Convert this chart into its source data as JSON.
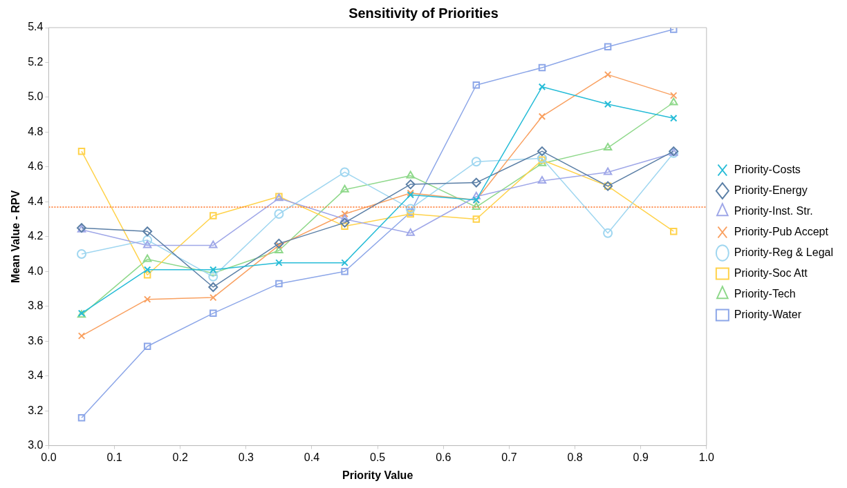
{
  "chart_data": {
    "type": "line",
    "title": "Sensitivity of Priorities",
    "xlabel": "Priority Value",
    "ylabel": "Mean Value - RPV",
    "x": [
      0.05,
      0.15,
      0.25,
      0.35,
      0.45,
      0.55,
      0.65,
      0.75,
      0.85,
      0.95
    ],
    "xlim": [
      0,
      1
    ],
    "xticks": [
      {
        "value": 0,
        "label": "0.0"
      },
      0.1,
      0.2,
      0.3,
      0.4,
      0.5,
      0.6,
      0.7,
      0.8,
      0.9,
      {
        "value": 1,
        "label": "1.0"
      }
    ],
    "ylim": [
      3,
      5.4
    ],
    "yticks": [
      {
        "value": 3,
        "label": "3.0"
      },
      3.2,
      3.4,
      3.6,
      3.8,
      {
        "value": 4,
        "label": "4.0"
      },
      4.2,
      4.4,
      4.6,
      4.8,
      {
        "value": 5,
        "label": "5.0"
      },
      5.2,
      5.4
    ],
    "grid": false,
    "legend": "right",
    "ref_lines": [
      {
        "axis": "y",
        "value": 4.37,
        "color": "#ff6a1a",
        "line_style": "dotted"
      }
    ],
    "series": [
      {
        "name": "Priority-Costs",
        "color": "#26bcd7",
        "marker": "cross",
        "values": [
          3.76,
          4.01,
          4.01,
          4.05,
          4.05,
          4.44,
          4.41,
          5.06,
          4.96,
          4.88
        ]
      },
      {
        "name": "Priority-Energy",
        "color": "#5b7fa6",
        "marker": "diamond",
        "values": [
          4.25,
          4.23,
          3.91,
          4.16,
          4.28,
          4.5,
          4.51,
          4.69,
          4.49,
          4.69
        ]
      },
      {
        "name": "Priority-Inst. Str.",
        "color": "#9fa7e8",
        "marker": "triangle",
        "values": [
          4.24,
          4.15,
          4.15,
          4.42,
          4.3,
          4.22,
          4.43,
          4.52,
          4.57,
          4.68
        ]
      },
      {
        "name": "Priority-Pub Accept",
        "color": "#f9a060",
        "marker": "cross",
        "values": [
          3.63,
          3.84,
          3.85,
          4.15,
          4.33,
          4.45,
          4.41,
          4.89,
          5.13,
          5.01
        ]
      },
      {
        "name": "Priority-Reg & Legal",
        "color": "#9fd6f0",
        "marker": "circle",
        "values": [
          4.1,
          4.18,
          3.97,
          4.33,
          4.57,
          4.36,
          4.63,
          4.65,
          4.22,
          4.68
        ]
      },
      {
        "name": "Priority-Soc Att",
        "color": "#ffd24a",
        "marker": "square",
        "values": [
          4.69,
          3.98,
          4.32,
          4.43,
          4.26,
          4.33,
          4.3,
          4.64,
          4.49,
          4.23
        ]
      },
      {
        "name": "Priority-Tech",
        "color": "#8ed88a",
        "marker": "triangle",
        "values": [
          3.75,
          4.07,
          3.99,
          4.12,
          4.47,
          4.55,
          4.37,
          4.62,
          4.71,
          4.97
        ]
      },
      {
        "name": "Priority-Water",
        "color": "#8ca6e8",
        "marker": "square",
        "values": [
          3.16,
          3.57,
          3.76,
          3.93,
          4.0,
          4.34,
          5.07,
          5.17,
          5.29,
          5.39
        ]
      }
    ]
  }
}
